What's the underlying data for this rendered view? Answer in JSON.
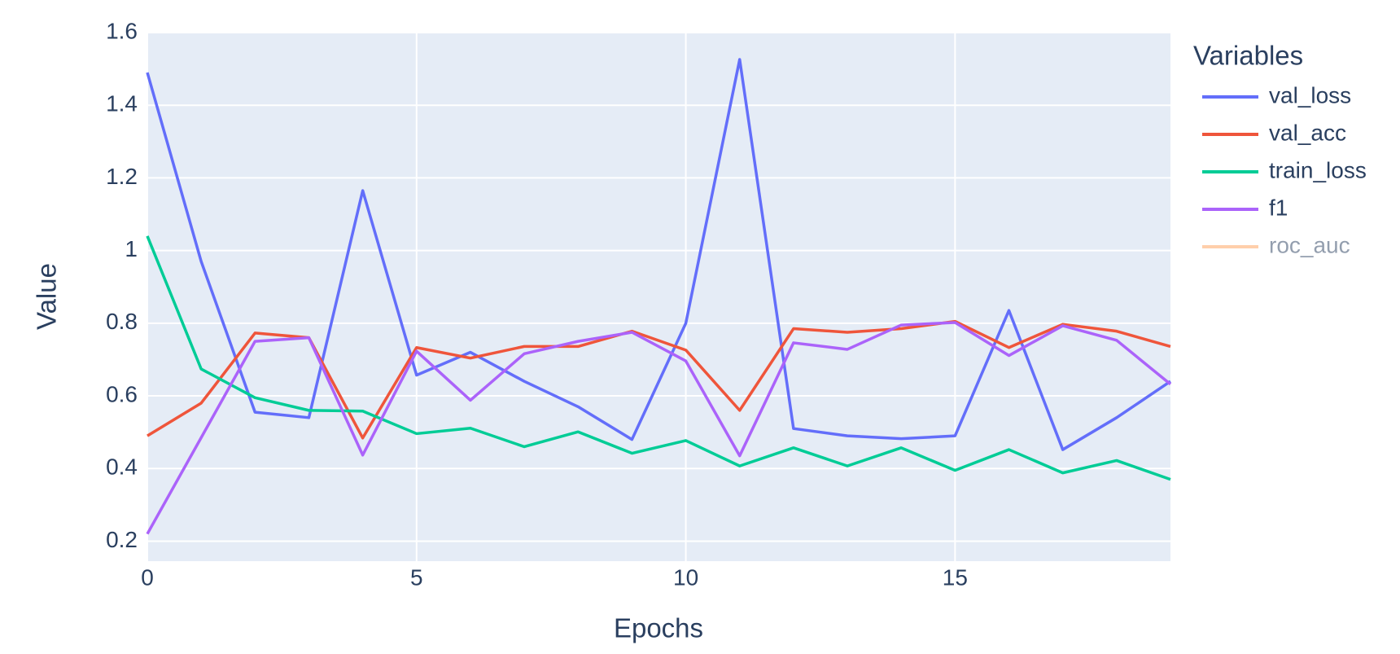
{
  "chart_data": {
    "type": "line",
    "xlabel": "Epochs",
    "ylabel": "Value",
    "legend_title": "Variables",
    "x": [
      0,
      1,
      2,
      3,
      4,
      5,
      6,
      7,
      8,
      9,
      10,
      11,
      12,
      13,
      14,
      15,
      16,
      17,
      18,
      19
    ],
    "xlim": [
      0,
      19
    ],
    "xticks": [
      0,
      5,
      10,
      15
    ],
    "ylim": [
      0.145,
      1.6
    ],
    "yticks": [
      0.2,
      0.4,
      0.6,
      0.8,
      1,
      1.2,
      1.4,
      1.6
    ],
    "grid": true,
    "legend": "right",
    "series": [
      {
        "name": "val_loss",
        "color": "#636efa",
        "values": [
          1.49,
          0.97,
          0.555,
          0.54,
          1.165,
          0.657,
          0.72,
          0.64,
          0.57,
          0.48,
          0.8,
          1.526,
          0.51,
          0.49,
          0.482,
          0.49,
          0.835,
          0.452,
          0.54,
          0.64
        ]
      },
      {
        "name": "val_acc",
        "color": "#EF553B",
        "values": [
          0.49,
          0.58,
          0.773,
          0.76,
          0.484,
          0.733,
          0.704,
          0.736,
          0.736,
          0.778,
          0.726,
          0.56,
          0.785,
          0.775,
          0.785,
          0.805,
          0.733,
          0.797,
          0.778,
          0.736
        ]
      },
      {
        "name": "train_loss",
        "color": "#00cc96",
        "values": [
          1.04,
          0.674,
          0.595,
          0.56,
          0.558,
          0.496,
          0.511,
          0.46,
          0.501,
          0.442,
          0.477,
          0.407,
          0.457,
          0.407,
          0.457,
          0.395,
          0.452,
          0.388,
          0.422,
          0.37
        ]
      },
      {
        "name": "f1",
        "color": "#ab63fa",
        "values": [
          0.22,
          0.485,
          0.75,
          0.76,
          0.437,
          0.723,
          0.588,
          0.716,
          0.75,
          0.775,
          0.696,
          0.435,
          0.746,
          0.728,
          0.795,
          0.802,
          0.711,
          0.793,
          0.753,
          0.632
        ]
      },
      {
        "name": "roc_auc",
        "color": "#FFA15A",
        "visible": "legendonly",
        "values": [
          null,
          null,
          null,
          null,
          null,
          null,
          null,
          null,
          null,
          null,
          null,
          null,
          null,
          null,
          null,
          null,
          null,
          null,
          null,
          null
        ]
      }
    ]
  }
}
